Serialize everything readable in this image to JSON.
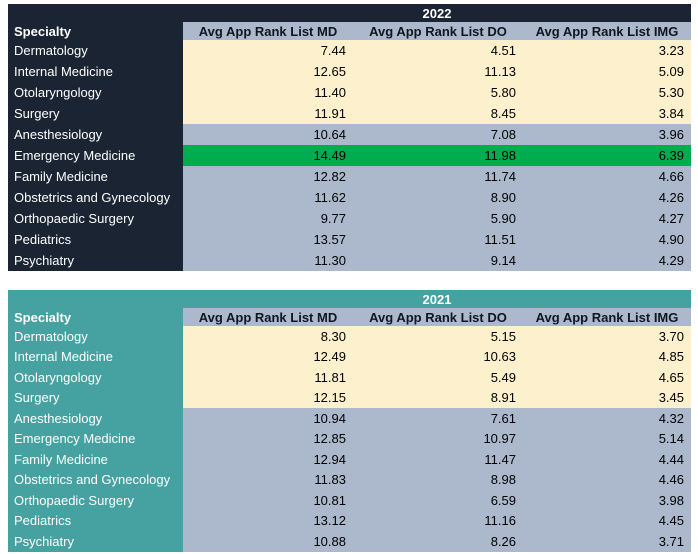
{
  "colors": {
    "navy_theme": "#1b2433",
    "teal_theme": "#46a1a1",
    "cream_row": "#fdf0cd",
    "slate_row": "#acb9cc",
    "green_highlight": "#00ac50",
    "header_fill": "#acb9cc"
  },
  "chart_data": [
    {
      "type": "table",
      "title": "2022",
      "specialty_header": "Specialty",
      "columns": [
        "Avg App Rank List MD",
        "Avg App Rank List DO",
        "Avg App Rank List IMG"
      ],
      "rows": [
        {
          "specialty": "Dermatology",
          "md": "7.44",
          "do": "4.51",
          "img": "3.23",
          "tone": "cream"
        },
        {
          "specialty": "Internal Medicine",
          "md": "12.65",
          "do": "11.13",
          "img": "5.09",
          "tone": "cream"
        },
        {
          "specialty": "Otolaryngology",
          "md": "11.40",
          "do": "5.80",
          "img": "5.30",
          "tone": "cream"
        },
        {
          "specialty": "Surgery",
          "md": "11.91",
          "do": "8.45",
          "img": "3.84",
          "tone": "cream"
        },
        {
          "specialty": "Anesthesiology",
          "md": "10.64",
          "do": "7.08",
          "img": "3.96",
          "tone": "slate"
        },
        {
          "specialty": "Emergency Medicine",
          "md": "14.49",
          "do": "11.98",
          "img": "6.39",
          "tone": "green"
        },
        {
          "specialty": "Family Medicine",
          "md": "12.82",
          "do": "11.74",
          "img": "4.66",
          "tone": "slate"
        },
        {
          "specialty": "Obstetrics and Gynecology",
          "md": "11.62",
          "do": "8.90",
          "img": "4.26",
          "tone": "slate"
        },
        {
          "specialty": "Orthopaedic Surgery",
          "md": "9.77",
          "do": "5.90",
          "img": "4.27",
          "tone": "slate"
        },
        {
          "specialty": "Pediatrics",
          "md": "13.57",
          "do": "11.51",
          "img": "4.90",
          "tone": "slate"
        },
        {
          "specialty": "Psychiatry",
          "md": "11.30",
          "do": "9.14",
          "img": "4.29",
          "tone": "slate"
        }
      ]
    },
    {
      "type": "table",
      "title": "2021",
      "specialty_header": "Specialty",
      "columns": [
        "Avg App Rank List MD",
        "Avg App Rank List DO",
        "Avg App Rank List IMG"
      ],
      "rows": [
        {
          "specialty": "Dermatology",
          "md": "8.30",
          "do": "5.15",
          "img": "3.70",
          "tone": "cream"
        },
        {
          "specialty": "Internal Medicine",
          "md": "12.49",
          "do": "10.63",
          "img": "4.85",
          "tone": "cream"
        },
        {
          "specialty": "Otolaryngology",
          "md": "11.81",
          "do": "5.49",
          "img": "4.65",
          "tone": "cream"
        },
        {
          "specialty": "Surgery",
          "md": "12.15",
          "do": "8.91",
          "img": "3.45",
          "tone": "cream"
        },
        {
          "specialty": "Anesthesiology",
          "md": "10.94",
          "do": "7.61",
          "img": "4.32",
          "tone": "slate"
        },
        {
          "specialty": "Emergency Medicine",
          "md": "12.85",
          "do": "10.97",
          "img": "5.14",
          "tone": "slate"
        },
        {
          "specialty": "Family Medicine",
          "md": "12.94",
          "do": "11.47",
          "img": "4.44",
          "tone": "slate"
        },
        {
          "specialty": "Obstetrics and Gynecology",
          "md": "11.83",
          "do": "8.98",
          "img": "4.46",
          "tone": "slate"
        },
        {
          "specialty": "Orthopaedic Surgery",
          "md": "10.81",
          "do": "6.59",
          "img": "3.98",
          "tone": "slate"
        },
        {
          "specialty": "Pediatrics",
          "md": "13.12",
          "do": "11.16",
          "img": "4.45",
          "tone": "slate"
        },
        {
          "specialty": "Psychiatry",
          "md": "10.88",
          "do": "8.26",
          "img": "3.71",
          "tone": "slate"
        }
      ]
    }
  ]
}
